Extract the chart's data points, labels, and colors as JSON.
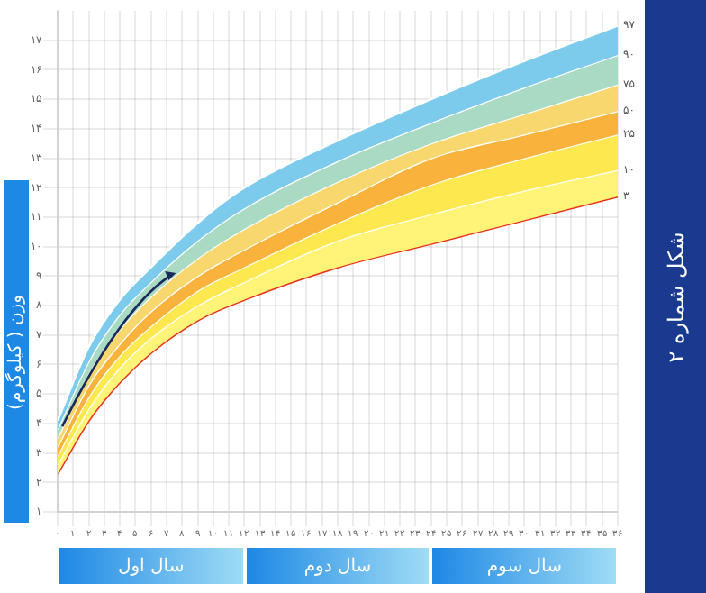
{
  "chart_data": {
    "type": "line",
    "title": "شکل شماره ۲",
    "ylabel": "وزن ( کیلوگرم)",
    "x": [
      0,
      2,
      4,
      6,
      9,
      12,
      18,
      24,
      30,
      36
    ],
    "xlim": [
      0,
      36
    ],
    "xticks": [
      {
        "value": 0,
        "label": "۰"
      },
      {
        "value": 1,
        "label": "۱"
      },
      {
        "value": 2,
        "label": "۲"
      },
      {
        "value": 3,
        "label": "۳"
      },
      {
        "value": 4,
        "label": "۴"
      },
      {
        "value": 5,
        "label": "۵"
      },
      {
        "value": 6,
        "label": "۶"
      },
      {
        "value": 7,
        "label": "۷"
      },
      {
        "value": 8,
        "label": "۸"
      },
      {
        "value": 9,
        "label": "۹"
      },
      {
        "value": 10,
        "label": "۱۰"
      },
      {
        "value": 11,
        "label": "۱۱"
      },
      {
        "value": 12,
        "label": "۱۲"
      },
      {
        "value": 13,
        "label": "۱۳"
      },
      {
        "value": 14,
        "label": "۱۴"
      },
      {
        "value": 15,
        "label": "۱۵"
      },
      {
        "value": 16,
        "label": "۱۶"
      },
      {
        "value": 17,
        "label": "۱۷"
      },
      {
        "value": 18,
        "label": "۱۸"
      },
      {
        "value": 19,
        "label": "۱۹"
      },
      {
        "value": 20,
        "label": "۲۰"
      },
      {
        "value": 21,
        "label": "۲۱"
      },
      {
        "value": 22,
        "label": "۲۲"
      },
      {
        "value": 23,
        "label": "۲۳"
      },
      {
        "value": 24,
        "label": "۲۴"
      },
      {
        "value": 25,
        "label": "۲۵"
      },
      {
        "value": 26,
        "label": "۲۶"
      },
      {
        "value": 27,
        "label": "۲۷"
      },
      {
        "value": 28,
        "label": "۲۸"
      },
      {
        "value": 29,
        "label": "۲۹"
      },
      {
        "value": 30,
        "label": "۳۰"
      },
      {
        "value": 31,
        "label": "۳۱"
      },
      {
        "value": 32,
        "label": "۳۲"
      },
      {
        "value": 33,
        "label": "۳۳"
      },
      {
        "value": 34,
        "label": "۳۴"
      },
      {
        "value": 35,
        "label": "۳۵"
      },
      {
        "value": 36,
        "label": "۳۶"
      }
    ],
    "ylim": [
      1,
      18
    ],
    "yticks": [
      {
        "value": 1,
        "label": "۱"
      },
      {
        "value": 2,
        "label": "۲"
      },
      {
        "value": 3,
        "label": "۳"
      },
      {
        "value": 4,
        "label": "۴"
      },
      {
        "value": 5,
        "label": "۵"
      },
      {
        "value": 6,
        "label": "۶"
      },
      {
        "value": 7,
        "label": "۷"
      },
      {
        "value": 8,
        "label": "۸"
      },
      {
        "value": 9,
        "label": "۹"
      },
      {
        "value": 10,
        "label": "۱۰"
      },
      {
        "value": 11,
        "label": "۱۱"
      },
      {
        "value": 12,
        "label": "۱۲"
      },
      {
        "value": 13,
        "label": "۱۳"
      },
      {
        "value": 14,
        "label": "۱۴"
      },
      {
        "value": 15,
        "label": "۱۵"
      },
      {
        "value": 16,
        "label": "۱۶"
      },
      {
        "value": 17,
        "label": "۱۷"
      }
    ],
    "grid": true,
    "legend": false,
    "marker": "none",
    "line_style": "solid",
    "annotations": [
      "سال اول",
      "سال دوم",
      "سال سوم"
    ],
    "series": [
      {
        "name": "۹۷",
        "type": "area",
        "color": "#7dcbec",
        "values": [
          4.1,
          6.6,
          8.2,
          9.3,
          10.8,
          12.0,
          13.6,
          15.0,
          16.3,
          17.5
        ]
      },
      {
        "name": "۹۰",
        "type": "area",
        "color": "#a8dac4",
        "values": [
          3.8,
          6.1,
          7.7,
          8.8,
          10.2,
          11.3,
          12.9,
          14.2,
          15.4,
          16.5
        ]
      },
      {
        "name": "۷۵",
        "type": "area",
        "color": "#f7d76e",
        "values": [
          3.5,
          5.7,
          7.2,
          8.3,
          9.6,
          10.6,
          12.2,
          13.5,
          14.5,
          15.5
        ]
      },
      {
        "name": "۵۰",
        "type": "area",
        "color": "#f9b23c",
        "values": [
          3.2,
          5.3,
          6.7,
          7.8,
          9.0,
          9.9,
          11.5,
          13.0,
          13.8,
          14.6
        ]
      },
      {
        "name": "۲۵",
        "type": "area",
        "color": "#fde850",
        "values": [
          2.9,
          4.9,
          6.3,
          7.3,
          8.5,
          9.3,
          10.8,
          12.1,
          13.0,
          13.8
        ]
      },
      {
        "name": "۱۰",
        "type": "area",
        "color": "#fff378",
        "values": [
          2.6,
          4.5,
          5.9,
          6.9,
          8.0,
          8.8,
          10.2,
          11.1,
          11.9,
          12.6
        ]
      },
      {
        "name": "۳",
        "color": "#e8331c",
        "values": [
          2.3,
          4.1,
          5.4,
          6.4,
          7.5,
          8.2,
          9.3,
          10.1,
          10.9,
          11.7
        ]
      }
    ]
  }
}
